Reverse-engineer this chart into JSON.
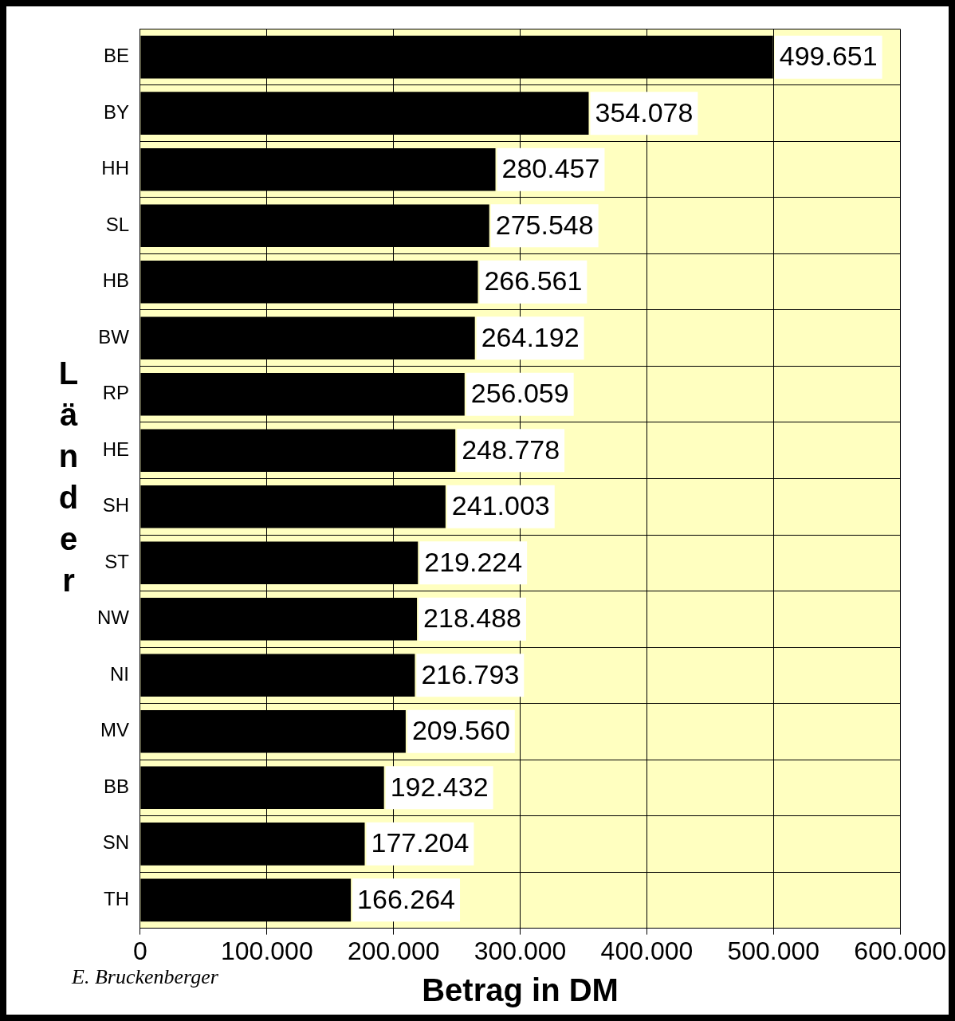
{
  "chart_data": {
    "type": "bar",
    "orientation": "horizontal",
    "xlabel": "Betrag in DM",
    "ylabel": "Länder",
    "categories": [
      "BE",
      "BY",
      "HH",
      "SL",
      "HB",
      "BW",
      "RP",
      "HE",
      "SH",
      "ST",
      "NW",
      "NI",
      "MV",
      "BB",
      "SN",
      "TH"
    ],
    "values": [
      499651,
      354078,
      280457,
      275548,
      266561,
      264192,
      256059,
      248778,
      241003,
      219224,
      218488,
      216793,
      209560,
      192432,
      177204,
      166264
    ],
    "value_labels": [
      "499.651",
      "354.078",
      "280.457",
      "275.548",
      "266.561",
      "264.192",
      "256.059",
      "248.778",
      "241.003",
      "219.224",
      "218.488",
      "216.793",
      "209.560",
      "192.432",
      "177.204",
      "166.264"
    ],
    "color": "#000000",
    "xlim": [
      0,
      600000
    ],
    "xticks": [
      {
        "value": 0,
        "label": "0"
      },
      {
        "value": 100000,
        "label": "100.000"
      },
      {
        "value": 200000,
        "label": "200.000"
      },
      {
        "value": 300000,
        "label": "300.000"
      },
      {
        "value": 400000,
        "label": "400.000"
      },
      {
        "value": 500000,
        "label": "500.000"
      },
      {
        "value": 600000,
        "label": "600.000"
      }
    ],
    "grid": true,
    "legend": false,
    "annotations": [
      "E. Bruckenberger"
    ]
  }
}
